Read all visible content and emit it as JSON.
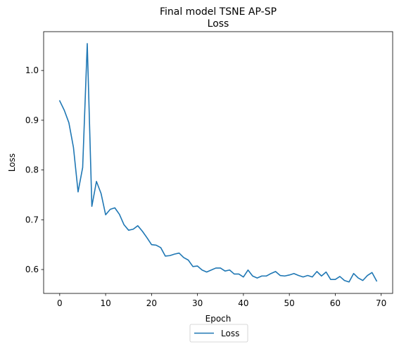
{
  "chart_data": {
    "type": "line",
    "title": "Final model TSNE AP-SP",
    "subtitle": "Loss",
    "xlabel": "Epoch",
    "ylabel": "Loss",
    "xlim": [
      -3.5,
      72.5
    ],
    "ylim": [
      0.552,
      1.078
    ],
    "xticks": [
      0,
      10,
      20,
      30,
      40,
      50,
      60,
      70
    ],
    "yticks": [
      0.6,
      0.7,
      0.8,
      0.9,
      1.0
    ],
    "xtick_labels": [
      "0",
      "10",
      "20",
      "30",
      "40",
      "50",
      "60",
      "70"
    ],
    "ytick_labels": [
      "0.6",
      "0.7",
      "0.8",
      "0.9",
      "1.0"
    ],
    "grid": false,
    "legend_position": "bottom-center",
    "color": "#1f77b4",
    "series": [
      {
        "name": "Loss",
        "x": [
          0,
          1,
          2,
          3,
          4,
          5,
          6,
          7,
          8,
          9,
          10,
          11,
          12,
          13,
          14,
          15,
          16,
          17,
          18,
          19,
          20,
          21,
          22,
          23,
          24,
          25,
          26,
          27,
          28,
          29,
          30,
          31,
          32,
          33,
          34,
          35,
          36,
          37,
          38,
          39,
          40,
          41,
          42,
          43,
          44,
          45,
          46,
          47,
          48,
          49,
          50,
          51,
          52,
          53,
          54,
          55,
          56,
          57,
          58,
          59,
          60,
          61,
          62,
          63,
          64,
          65,
          66,
          67,
          68,
          69
        ],
        "values": [
          0.939,
          0.92,
          0.895,
          0.845,
          0.756,
          0.805,
          1.054,
          0.727,
          0.777,
          0.753,
          0.71,
          0.721,
          0.724,
          0.711,
          0.69,
          0.679,
          0.681,
          0.688,
          0.677,
          0.664,
          0.65,
          0.649,
          0.644,
          0.627,
          0.628,
          0.631,
          0.633,
          0.624,
          0.619,
          0.606,
          0.607,
          0.599,
          0.595,
          0.599,
          0.603,
          0.603,
          0.597,
          0.599,
          0.591,
          0.591,
          0.585,
          0.599,
          0.587,
          0.583,
          0.587,
          0.587,
          0.592,
          0.596,
          0.588,
          0.587,
          0.589,
          0.592,
          0.588,
          0.585,
          0.588,
          0.585,
          0.596,
          0.587,
          0.595,
          0.58,
          0.58,
          0.586,
          0.578,
          0.575,
          0.592,
          0.583,
          0.578,
          0.588,
          0.594,
          0.577
        ]
      }
    ]
  }
}
